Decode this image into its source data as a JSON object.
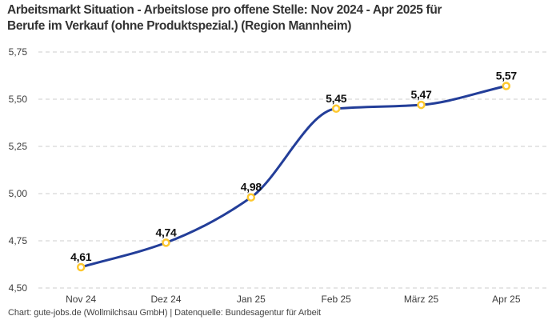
{
  "chart_data": {
    "type": "line",
    "title": "Arbeitsmarkt Situation - Arbeitslose pro offene Stelle: Nov 2024 - Apr 2025 für Berufe im Verkauf (ohne Produktspezial.) (Region Mannheim)",
    "title_lines": [
      "Arbeitsmarkt Situation - Arbeitslose pro offene Stelle: Nov 2024 - Apr 2025 für",
      "Berufe im Verkauf (ohne Produktspezial.) (Region Mannheim)"
    ],
    "categories": [
      "Nov 24",
      "Dez 24",
      "Jan 25",
      "Feb 25",
      "März 25",
      "Apr 25"
    ],
    "values": [
      4.61,
      4.74,
      4.98,
      5.45,
      5.47,
      5.57
    ],
    "value_labels": [
      "4,61",
      "4,74",
      "4,98",
      "5,45",
      "5,47",
      "5,57"
    ],
    "ylim": [
      4.5,
      5.75
    ],
    "ytick_values": [
      4.5,
      4.75,
      5.0,
      5.25,
      5.5,
      5.75
    ],
    "ytick_labels": [
      "4,50",
      "4,75",
      "5,00",
      "5,25",
      "5,50",
      "5,75"
    ],
    "xlabel": "",
    "ylabel": "",
    "grid": "horizontal-dashed",
    "legend": "none",
    "curve": "monotone",
    "colors": {
      "line": "#233e99",
      "marker_fill": "#ffffff",
      "marker_stroke": "#fec82f",
      "gridline": "#cccccc",
      "axis_label": "#3c3c3c",
      "data_label": "#0f0f0f"
    }
  },
  "footer": {
    "credit": "Chart: gute-jobs.de (Wollmilchsau GmbH) | Datenquelle: Bundesagentur für Arbeit"
  }
}
